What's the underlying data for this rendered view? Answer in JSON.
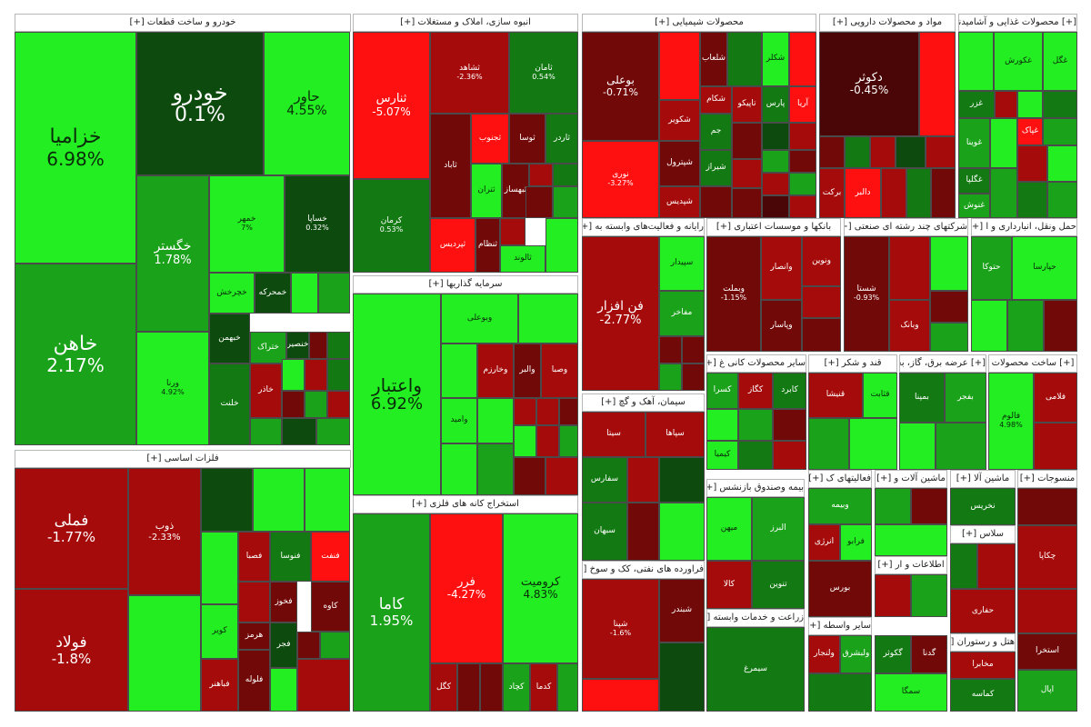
{
  "chart_data": {
    "type": "treemap",
    "title": "",
    "colors": {
      "strong_up": "#22ee22",
      "up": "#1aa21a",
      "weak_up": "#137a13",
      "faint_up": "#0d4a0d",
      "strong_down": "#ff1010",
      "down": "#a50b0b",
      "weak_down": "#720909",
      "faint_down": "#4a0606"
    },
    "sectors": [
      {
        "id": "auto",
        "label": "خودرو و ساخت قطعات [+]"
      },
      {
        "id": "build",
        "label": "انبوه سازی، املاک و مستغلات [+]"
      },
      {
        "id": "chem",
        "label": "محصولات شیمیایی [+]"
      },
      {
        "id": "pharma",
        "label": "مواد و محصولات دارویی [+]"
      },
      {
        "id": "food",
        "label": "[+] محصولات غذایی و آشامیدنی"
      },
      {
        "id": "metals",
        "label": "فلزات اساسی [+]"
      },
      {
        "id": "invest",
        "label": "سرمایه گذاریها [+]"
      },
      {
        "id": "mining",
        "label": "استخراج کانه های فلزی [+]"
      },
      {
        "id": "computer",
        "label": "رایانه و فعالیت‌های وابسته به [+]"
      },
      {
        "id": "banks",
        "label": "بانکها و موسسات اعتباری [+]"
      },
      {
        "id": "multi",
        "label": "شرکتهای چند رشته ای صنعتی [+]"
      },
      {
        "id": "transport",
        "label": "حمل ونقل، انبارداری و ا [+]"
      },
      {
        "id": "nonmetal",
        "label": "سایر محصولات کانی غ [+]"
      },
      {
        "id": "sugar",
        "label": "قند و شکر [+]"
      },
      {
        "id": "utility",
        "label": "[+] عرضه برق، گاز، بخا"
      },
      {
        "id": "otherprod",
        "label": "[+] ساخت محصولات"
      },
      {
        "id": "cement",
        "label": "سیمان، آهک و گچ [+]"
      },
      {
        "id": "insurance",
        "label": "بیمه وصندوق بازنشس [+]"
      },
      {
        "id": "activities",
        "label": "فعالیتهای ک [+]"
      },
      {
        "id": "machinery",
        "label": "ماشین آلات و [+]"
      },
      {
        "id": "machinery2",
        "label": "ماشین آلا [+]"
      },
      {
        "id": "textile",
        "label": "منسوجات [+]"
      },
      {
        "id": "oil",
        "label": "فراورده های نفتی، کک و سوخ [+]"
      },
      {
        "id": "farm",
        "label": "زراعت و خدمات وابسته [+]"
      },
      {
        "id": "mining2",
        "label": "سایر واسطه [+]"
      },
      {
        "id": "hotel",
        "label": "هتل و رستوران [+]"
      },
      {
        "id": "info",
        "label": "اطلاعات و ار [+]"
      },
      {
        "id": "otherx",
        "label": "سلاس [+]"
      }
    ],
    "tiles": [
      {
        "symbol": "خزامیا",
        "change": "6.98%",
        "value": 6.98
      },
      {
        "symbol": "خاهن",
        "change": "2.17%",
        "value": 2.17
      },
      {
        "symbol": "خودرو",
        "change": "0.1%",
        "value": 0.1
      },
      {
        "symbol": "حاور",
        "change": "4.55%",
        "value": 4.55
      },
      {
        "symbol": "خگستر",
        "change": "1.78%",
        "value": 1.78
      },
      {
        "symbol": "خمهر",
        "change": "7%",
        "value": 7
      },
      {
        "symbol": "خساپا",
        "change": "0.32%",
        "value": 0.32
      },
      {
        "symbol": "ورنا",
        "change": "4.92%",
        "value": 4.92
      },
      {
        "symbol": "خمحرکه",
        "change": "",
        "value": 0.4
      },
      {
        "symbol": "خچرخش",
        "change": "",
        "value": 3.5
      },
      {
        "symbol": "خبهمن",
        "change": "",
        "value": 0.3
      },
      {
        "symbol": "ختراک",
        "change": "",
        "value": 2.5
      },
      {
        "symbol": "خلنت",
        "change": "",
        "value": 1.2
      },
      {
        "symbol": "خنصیر",
        "change": "",
        "value": 0.2
      },
      {
        "symbol": "خاذر",
        "change": "",
        "value": -1.5
      },
      {
        "symbol": "ثنوسا",
        "change": "",
        "value": -1.2
      },
      {
        "symbol": "فملی",
        "change": "-1.77%",
        "value": -1.77
      },
      {
        "symbol": "فولاد",
        "change": "-1.8%",
        "value": -1.8
      },
      {
        "symbol": "ذوب",
        "change": "-2.33%",
        "value": -2.33
      },
      {
        "symbol": "فصبا",
        "change": "",
        "value": -2.2
      },
      {
        "symbol": "فنوسا",
        "change": "",
        "value": 1.1
      },
      {
        "symbol": "فخوز",
        "change": "",
        "value": -1.0
      },
      {
        "symbol": "کاوه",
        "change": "",
        "value": -0.7
      },
      {
        "symbol": "کویر",
        "change": "",
        "value": 3.2
      },
      {
        "symbol": "هرمز",
        "change": "",
        "value": -0.9
      },
      {
        "symbol": "فباهنر",
        "change": "",
        "value": -2.4
      },
      {
        "symbol": "فلوله",
        "change": "",
        "value": -1.1
      },
      {
        "symbol": "فجر",
        "change": "",
        "value": 0.4
      },
      {
        "symbol": "فنفت",
        "change": "",
        "value": -3.0
      },
      {
        "symbol": "ثنارس",
        "change": "-5.07%",
        "value": -5.07
      },
      {
        "symbol": "کرمان",
        "change": "0.53%",
        "value": 0.53
      },
      {
        "symbol": "ثشاهد",
        "change": "-2.36%",
        "value": -2.36
      },
      {
        "symbol": "ثامان",
        "change": "0.54%",
        "value": 0.54
      },
      {
        "symbol": "ثاباد",
        "change": "",
        "value": -0.5
      },
      {
        "symbol": "ثجنوب",
        "change": "",
        "value": -3.2
      },
      {
        "symbol": "ثوسا",
        "change": "",
        "value": -1.3
      },
      {
        "symbol": "ثاردر",
        "change": "",
        "value": 1.3
      },
      {
        "symbol": "ثنظام",
        "change": "",
        "value": -0.7
      },
      {
        "symbol": "ثتران",
        "change": "",
        "value": 3.4
      },
      {
        "symbol": "ثبهساز",
        "change": "",
        "value": -1.0
      },
      {
        "symbol": "ثپردیس",
        "change": "",
        "value": -3.5
      },
      {
        "symbol": "ثالوند",
        "change": "",
        "value": 3.1
      },
      {
        "symbol": "بوعلی",
        "change": "-0.71%",
        "value": -0.71
      },
      {
        "symbol": "نوری",
        "change": "-3.27%",
        "value": -3.27
      },
      {
        "symbol": "شکویر",
        "change": "",
        "value": -2.2
      },
      {
        "symbol": "شپترول",
        "change": "",
        "value": -0.9
      },
      {
        "symbol": "شپدیس",
        "change": "",
        "value": -2.0
      },
      {
        "symbol": "شکام",
        "change": "",
        "value": -2.6
      },
      {
        "symbol": "شیراز",
        "change": "",
        "value": 0.6
      },
      {
        "symbol": "تاپیکو",
        "change": "",
        "value": -1.8
      },
      {
        "symbol": "شکلر",
        "change": "",
        "value": 3.3
      },
      {
        "symbol": "پارس",
        "change": "",
        "value": 1.2
      },
      {
        "symbol": "آریا",
        "change": "",
        "value": -3.0
      },
      {
        "symbol": "جم",
        "change": "",
        "value": 0.7
      },
      {
        "symbol": "شلعاب",
        "change": "",
        "value": -0.8
      },
      {
        "symbol": "دکوثر",
        "change": "-0.45%",
        "value": -0.45
      },
      {
        "symbol": "برکت",
        "change": "",
        "value": -2.3
      },
      {
        "symbol": "دالبر",
        "change": "",
        "value": -3.4
      },
      {
        "symbol": "غگل",
        "change": "",
        "value": 3.2
      },
      {
        "symbol": "غکورش",
        "change": "",
        "value": 3.4
      },
      {
        "symbol": "غزر",
        "change": "",
        "value": 0.8
      },
      {
        "symbol": "غوینا",
        "change": "",
        "value": 2.1
      },
      {
        "symbol": "غگلپا",
        "change": "",
        "value": 1.1
      },
      {
        "symbol": "غنوش",
        "change": "",
        "value": 1.5
      },
      {
        "symbol": "غپاک",
        "change": "",
        "value": -3.0
      },
      {
        "symbol": "واعتبار",
        "change": "6.92%",
        "value": 6.92
      },
      {
        "symbol": "وبوعلی",
        "change": "",
        "value": 3.3
      },
      {
        "symbol": "وخارزم",
        "change": "",
        "value": -1.9
      },
      {
        "symbol": "والبر",
        "change": "",
        "value": -0.6
      },
      {
        "symbol": "وصبا",
        "change": "",
        "value": -2.4
      },
      {
        "symbol": "وامید",
        "change": "",
        "value": 3.8
      },
      {
        "symbol": "کاما",
        "change": "1.95%",
        "value": 1.95
      },
      {
        "symbol": "فرر",
        "change": "-4.27%",
        "value": -4.27
      },
      {
        "symbol": "کرومیت",
        "change": "4.83%",
        "value": 4.83
      },
      {
        "symbol": "کگل",
        "change": "",
        "value": -2.1
      },
      {
        "symbol": "کدما",
        "change": "",
        "value": -2.6
      },
      {
        "symbol": "کچاد",
        "change": "",
        "value": 1.8
      },
      {
        "symbol": "فن افزار",
        "change": "-2.77%",
        "value": -2.77
      },
      {
        "symbol": "سپیدار",
        "change": "",
        "value": 3.0
      },
      {
        "symbol": "مفاخر",
        "change": "",
        "value": 1.7
      },
      {
        "symbol": "وبملت",
        "change": "-1.15%",
        "value": -1.15
      },
      {
        "symbol": "وانصار",
        "change": "",
        "value": -2.8
      },
      {
        "symbol": "ونوین",
        "change": "",
        "value": -2.0
      },
      {
        "symbol": "وپاسار",
        "change": "",
        "value": -0.8
      },
      {
        "symbol": "وبانک",
        "change": "",
        "value": -2.6
      },
      {
        "symbol": "شستا",
        "change": "-0.93%",
        "value": -0.93
      },
      {
        "symbol": "وتوکا",
        "change": "",
        "value": -0.3
      },
      {
        "symbol": "حتوکا",
        "change": "",
        "value": 1.6
      },
      {
        "symbol": "حپارسا",
        "change": "",
        "value": 3.1
      },
      {
        "symbol": "کگاز",
        "change": "",
        "value": -2.2
      },
      {
        "symbol": "کسرا",
        "change": "",
        "value": 2.3
      },
      {
        "symbol": "کابرد",
        "change": "",
        "value": 0.5
      },
      {
        "symbol": "کیمیا",
        "change": "",
        "value": 3.3
      },
      {
        "symbol": "قنیشا",
        "change": "",
        "value": -1.9
      },
      {
        "symbol": "قثابت",
        "change": "",
        "value": 3.1
      },
      {
        "symbol": "بمپنا",
        "change": "",
        "value": 1.4
      },
      {
        "symbol": "بفجر",
        "change": "",
        "value": 2.2
      },
      {
        "symbol": "فالوم",
        "change": "4.98%",
        "value": 4.98
      },
      {
        "symbol": "فلامی",
        "change": "",
        "value": -2.5
      },
      {
        "symbol": "سیتا",
        "change": "",
        "value": -2.4
      },
      {
        "symbol": "سپاها",
        "change": "",
        "value": -2.0
      },
      {
        "symbol": "سفارس",
        "change": "",
        "value": 0.5
      },
      {
        "symbol": "سبهان",
        "change": "",
        "value": 1.3
      },
      {
        "symbol": "شپنا",
        "change": "-1.6%",
        "value": -1.6
      },
      {
        "symbol": "شبندر",
        "change": "",
        "value": -0.5
      },
      {
        "symbol": "شاوان",
        "change": "",
        "value": 0.7
      },
      {
        "symbol": "میهن",
        "change": "",
        "value": 3.1
      },
      {
        "symbol": "البرز",
        "change": "",
        "value": 1.6
      },
      {
        "symbol": "کالا",
        "change": "",
        "value": -2.3
      },
      {
        "symbol": "تنوین",
        "change": "",
        "value": 0.9
      },
      {
        "symbol": "وبیمه",
        "change": "",
        "value": 1.5
      },
      {
        "symbol": "انرژی",
        "change": "",
        "value": -2.0
      },
      {
        "symbol": "فرابو",
        "change": "",
        "value": 3.0
      },
      {
        "symbol": "بورس",
        "change": "",
        "value": -1.2
      },
      {
        "symbol": "سیمرغ",
        "change": "",
        "value": 0.8
      },
      {
        "symbol": "ولنجار",
        "change": "",
        "value": -2.4
      },
      {
        "symbol": "ولبشرق",
        "change": "",
        "value": 2.4
      },
      {
        "symbol": "گکوثر",
        "change": "",
        "value": 0.5
      },
      {
        "symbol": "گدنا",
        "change": "",
        "value": -1.4
      },
      {
        "symbol": "سمگا",
        "change": "",
        "value": 3.0
      },
      {
        "symbol": "چکاپا",
        "change": "",
        "value": -2.9
      },
      {
        "symbol": "حفاری",
        "change": "",
        "value": -1.9
      },
      {
        "symbol": "کماسه",
        "change": "",
        "value": 1.3
      },
      {
        "symbol": "نخریس",
        "change": "",
        "value": 1.1
      },
      {
        "symbol": "مخابرا",
        "change": "",
        "value": -1.6
      },
      {
        "symbol": "استخرا",
        "change": "",
        "value": -0.7
      },
      {
        "symbol": "اپال",
        "change": "",
        "value": 2.6
      }
    ]
  }
}
